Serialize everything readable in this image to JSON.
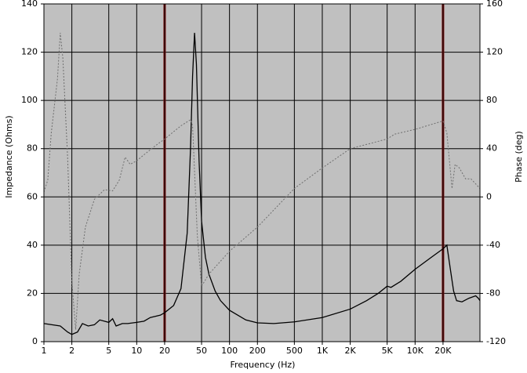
{
  "chart_data": {
    "type": "line",
    "xscale": "log",
    "xlabel": "Frequency (Hz)",
    "ylabel": "Impedance (Ohms)",
    "y2label": "Phase (deg)",
    "xlim": [
      1,
      50000
    ],
    "xticks": [
      1,
      2,
      5,
      10,
      20,
      50,
      100,
      200,
      500,
      {
        "value": 1000,
        "label": "1K"
      },
      {
        "value": 2000,
        "label": "2K"
      },
      {
        "value": 5000,
        "label": "5K"
      },
      {
        "value": 10000,
        "label": "10K"
      },
      {
        "value": 20000,
        "label": "20K"
      }
    ],
    "ylim": [
      0,
      140
    ],
    "yticks": [
      0,
      20,
      40,
      60,
      80,
      100,
      120,
      140
    ],
    "y2lim": [
      -120,
      160
    ],
    "y2ticks": [
      -120,
      -80,
      -40,
      0,
      40,
      80,
      120,
      160
    ],
    "grid": true,
    "background": "#c0c0c0",
    "vlines": [
      20,
      20000
    ],
    "vline_color": "#7a1010",
    "series": [
      {
        "color": "#000000",
        "x": [
          1,
          1.5,
          1.8,
          2,
          2.3,
          2.6,
          3,
          3.5,
          4,
          5,
          5.5,
          6,
          7,
          8,
          10,
          12,
          14,
          18,
          20,
          25,
          30,
          35,
          38,
          40,
          42,
          44,
          47,
          50,
          55,
          60,
          70,
          80,
          100,
          150,
          200,
          300,
          500,
          1000,
          2000,
          3000,
          4000,
          5000,
          5500,
          7000,
          10000,
          15000,
          20000,
          22000,
          24000,
          26000,
          28000,
          32000,
          38000,
          45000,
          48000,
          50000
        ],
        "values": [
          7.5,
          6.5,
          4,
          3,
          4,
          7.5,
          6.5,
          7,
          9,
          8,
          9.5,
          6.5,
          7.5,
          7.5,
          8,
          8.5,
          10,
          11,
          12,
          15,
          22,
          45,
          80,
          110,
          128,
          115,
          75,
          50,
          35,
          28,
          21,
          17,
          13,
          9,
          7.8,
          7.5,
          8.2,
          10,
          13.5,
          17,
          20,
          23,
          22.5,
          25,
          30,
          35,
          38.5,
          40,
          30,
          21,
          17,
          16.5,
          18,
          19,
          18,
          17
        ]
      },
      {
        "color": "#6e6e6e",
        "axis": "y2",
        "dashed": true,
        "x": [
          1,
          1.1,
          1.2,
          1.4,
          1.5,
          1.6,
          1.8,
          2,
          2.2,
          2.4,
          2.8,
          3.5,
          4.5,
          5.5,
          6.5,
          7.5,
          8.5,
          10,
          15,
          20,
          30,
          38,
          40,
          45,
          50,
          60,
          100,
          200,
          500,
          1000,
          2000,
          5000,
          6000,
          10000,
          20000,
          22000,
          25000,
          27000,
          30000,
          35000,
          40000,
          50000
        ],
        "values": [
          4,
          14,
          53,
          98,
          136,
          115,
          33,
          -70,
          -110,
          -64,
          -25,
          -2,
          6,
          5,
          14,
          33,
          27,
          30,
          41,
          48,
          59,
          64,
          59,
          -32,
          -74,
          -64,
          -45,
          -25,
          7,
          24,
          40,
          48,
          52,
          56,
          63,
          53,
          7,
          27,
          24,
          15,
          15,
          7
        ]
      }
    ]
  }
}
